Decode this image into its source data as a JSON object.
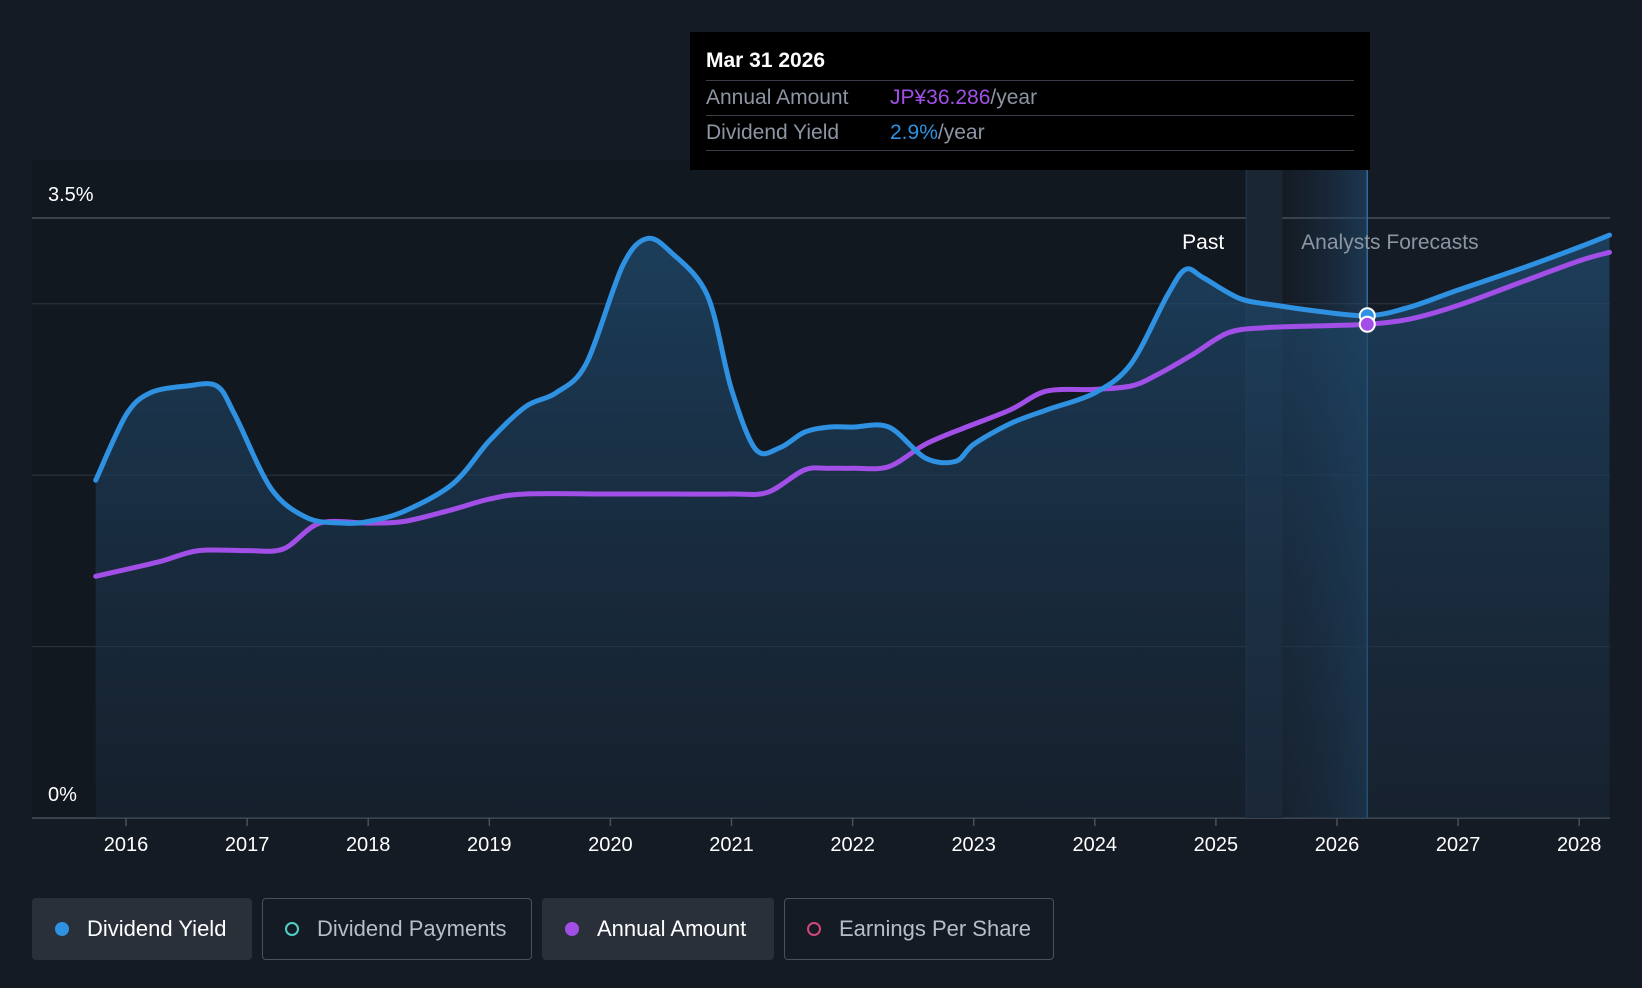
{
  "chart_data": {
    "type": "line",
    "yaxis": {
      "min": 0,
      "max": 3.5,
      "labels": [
        "3.5%",
        "0%"
      ]
    },
    "xaxis": {
      "ticks": [
        "2016",
        "2017",
        "2018",
        "2019",
        "2020",
        "2021",
        "2022",
        "2023",
        "2024",
        "2025",
        "2026",
        "2027",
        "2028"
      ]
    },
    "regions": {
      "past_label": "Past",
      "forecast_label": "Analysts Forecasts",
      "past_end": 2025.25,
      "forecast_start": 2025.55,
      "marker_x": 2026.25
    },
    "series": [
      {
        "name": "Dividend Yield",
        "color": "#2f91e1",
        "unit": "%",
        "points": [
          [
            2015.75,
            1.97
          ],
          [
            2016.0,
            2.35
          ],
          [
            2016.2,
            2.48
          ],
          [
            2016.5,
            2.52
          ],
          [
            2016.75,
            2.52
          ],
          [
            2016.9,
            2.35
          ],
          [
            2017.2,
            1.92
          ],
          [
            2017.5,
            1.75
          ],
          [
            2017.8,
            1.72
          ],
          [
            2018.0,
            1.73
          ],
          [
            2018.3,
            1.79
          ],
          [
            2018.7,
            1.95
          ],
          [
            2019.0,
            2.2
          ],
          [
            2019.3,
            2.4
          ],
          [
            2019.55,
            2.48
          ],
          [
            2019.8,
            2.65
          ],
          [
            2020.1,
            3.22
          ],
          [
            2020.3,
            3.38
          ],
          [
            2020.5,
            3.3
          ],
          [
            2020.8,
            3.05
          ],
          [
            2021.0,
            2.5
          ],
          [
            2021.2,
            2.15
          ],
          [
            2021.4,
            2.16
          ],
          [
            2021.6,
            2.25
          ],
          [
            2021.8,
            2.28
          ],
          [
            2022.0,
            2.28
          ],
          [
            2022.3,
            2.28
          ],
          [
            2022.6,
            2.1
          ],
          [
            2022.85,
            2.08
          ],
          [
            2023.0,
            2.18
          ],
          [
            2023.3,
            2.3
          ],
          [
            2023.6,
            2.38
          ],
          [
            2024.0,
            2.48
          ],
          [
            2024.3,
            2.65
          ],
          [
            2024.6,
            3.05
          ],
          [
            2024.75,
            3.2
          ],
          [
            2024.9,
            3.15
          ],
          [
            2025.2,
            3.03
          ],
          [
            2025.5,
            2.99
          ],
          [
            2025.8,
            2.96
          ],
          [
            2026.25,
            2.93
          ],
          [
            2026.6,
            2.98
          ],
          [
            2027.0,
            3.08
          ],
          [
            2027.5,
            3.2
          ],
          [
            2028.0,
            3.33
          ],
          [
            2028.25,
            3.4
          ]
        ]
      },
      {
        "name": "Annual Amount",
        "color": "#a24fe8",
        "unit": "JP¥",
        "points": [
          [
            2015.75,
            1.41
          ],
          [
            2016.0,
            1.45
          ],
          [
            2016.3,
            1.5
          ],
          [
            2016.6,
            1.56
          ],
          [
            2017.0,
            1.56
          ],
          [
            2017.3,
            1.57
          ],
          [
            2017.6,
            1.72
          ],
          [
            2018.0,
            1.72
          ],
          [
            2018.3,
            1.73
          ],
          [
            2018.7,
            1.8
          ],
          [
            2019.0,
            1.86
          ],
          [
            2019.3,
            1.89
          ],
          [
            2020.0,
            1.89
          ],
          [
            2020.5,
            1.89
          ],
          [
            2021.0,
            1.89
          ],
          [
            2021.3,
            1.9
          ],
          [
            2021.6,
            2.03
          ],
          [
            2021.8,
            2.04
          ],
          [
            2022.0,
            2.04
          ],
          [
            2022.3,
            2.05
          ],
          [
            2022.6,
            2.18
          ],
          [
            2022.9,
            2.27
          ],
          [
            2023.3,
            2.38
          ],
          [
            2023.6,
            2.49
          ],
          [
            2024.0,
            2.5
          ],
          [
            2024.3,
            2.52
          ],
          [
            2024.5,
            2.58
          ],
          [
            2024.8,
            2.7
          ],
          [
            2025.1,
            2.83
          ],
          [
            2025.4,
            2.86
          ],
          [
            2025.8,
            2.87
          ],
          [
            2026.25,
            2.88
          ],
          [
            2026.6,
            2.91
          ],
          [
            2027.0,
            2.99
          ],
          [
            2027.5,
            3.12
          ],
          [
            2028.0,
            3.25
          ],
          [
            2028.25,
            3.3
          ]
        ]
      }
    ]
  },
  "tooltip": {
    "date": "Mar 31 2026",
    "rows": [
      {
        "label": "Annual Amount",
        "value": "JP¥36.286",
        "unit": "/year",
        "color": "#a24fe8"
      },
      {
        "label": "Dividend Yield",
        "value": "2.9%",
        "unit": "/year",
        "color": "#2f91e1"
      }
    ]
  },
  "legend": [
    {
      "label": "Dividend Yield",
      "active": true,
      "color": "#2f91e1"
    },
    {
      "label": "Dividend Payments",
      "active": false,
      "color": "#4fd1c5"
    },
    {
      "label": "Annual Amount",
      "active": true,
      "color": "#a24fe8"
    },
    {
      "label": "Earnings Per Share",
      "active": false,
      "color": "#d2467a"
    }
  ]
}
